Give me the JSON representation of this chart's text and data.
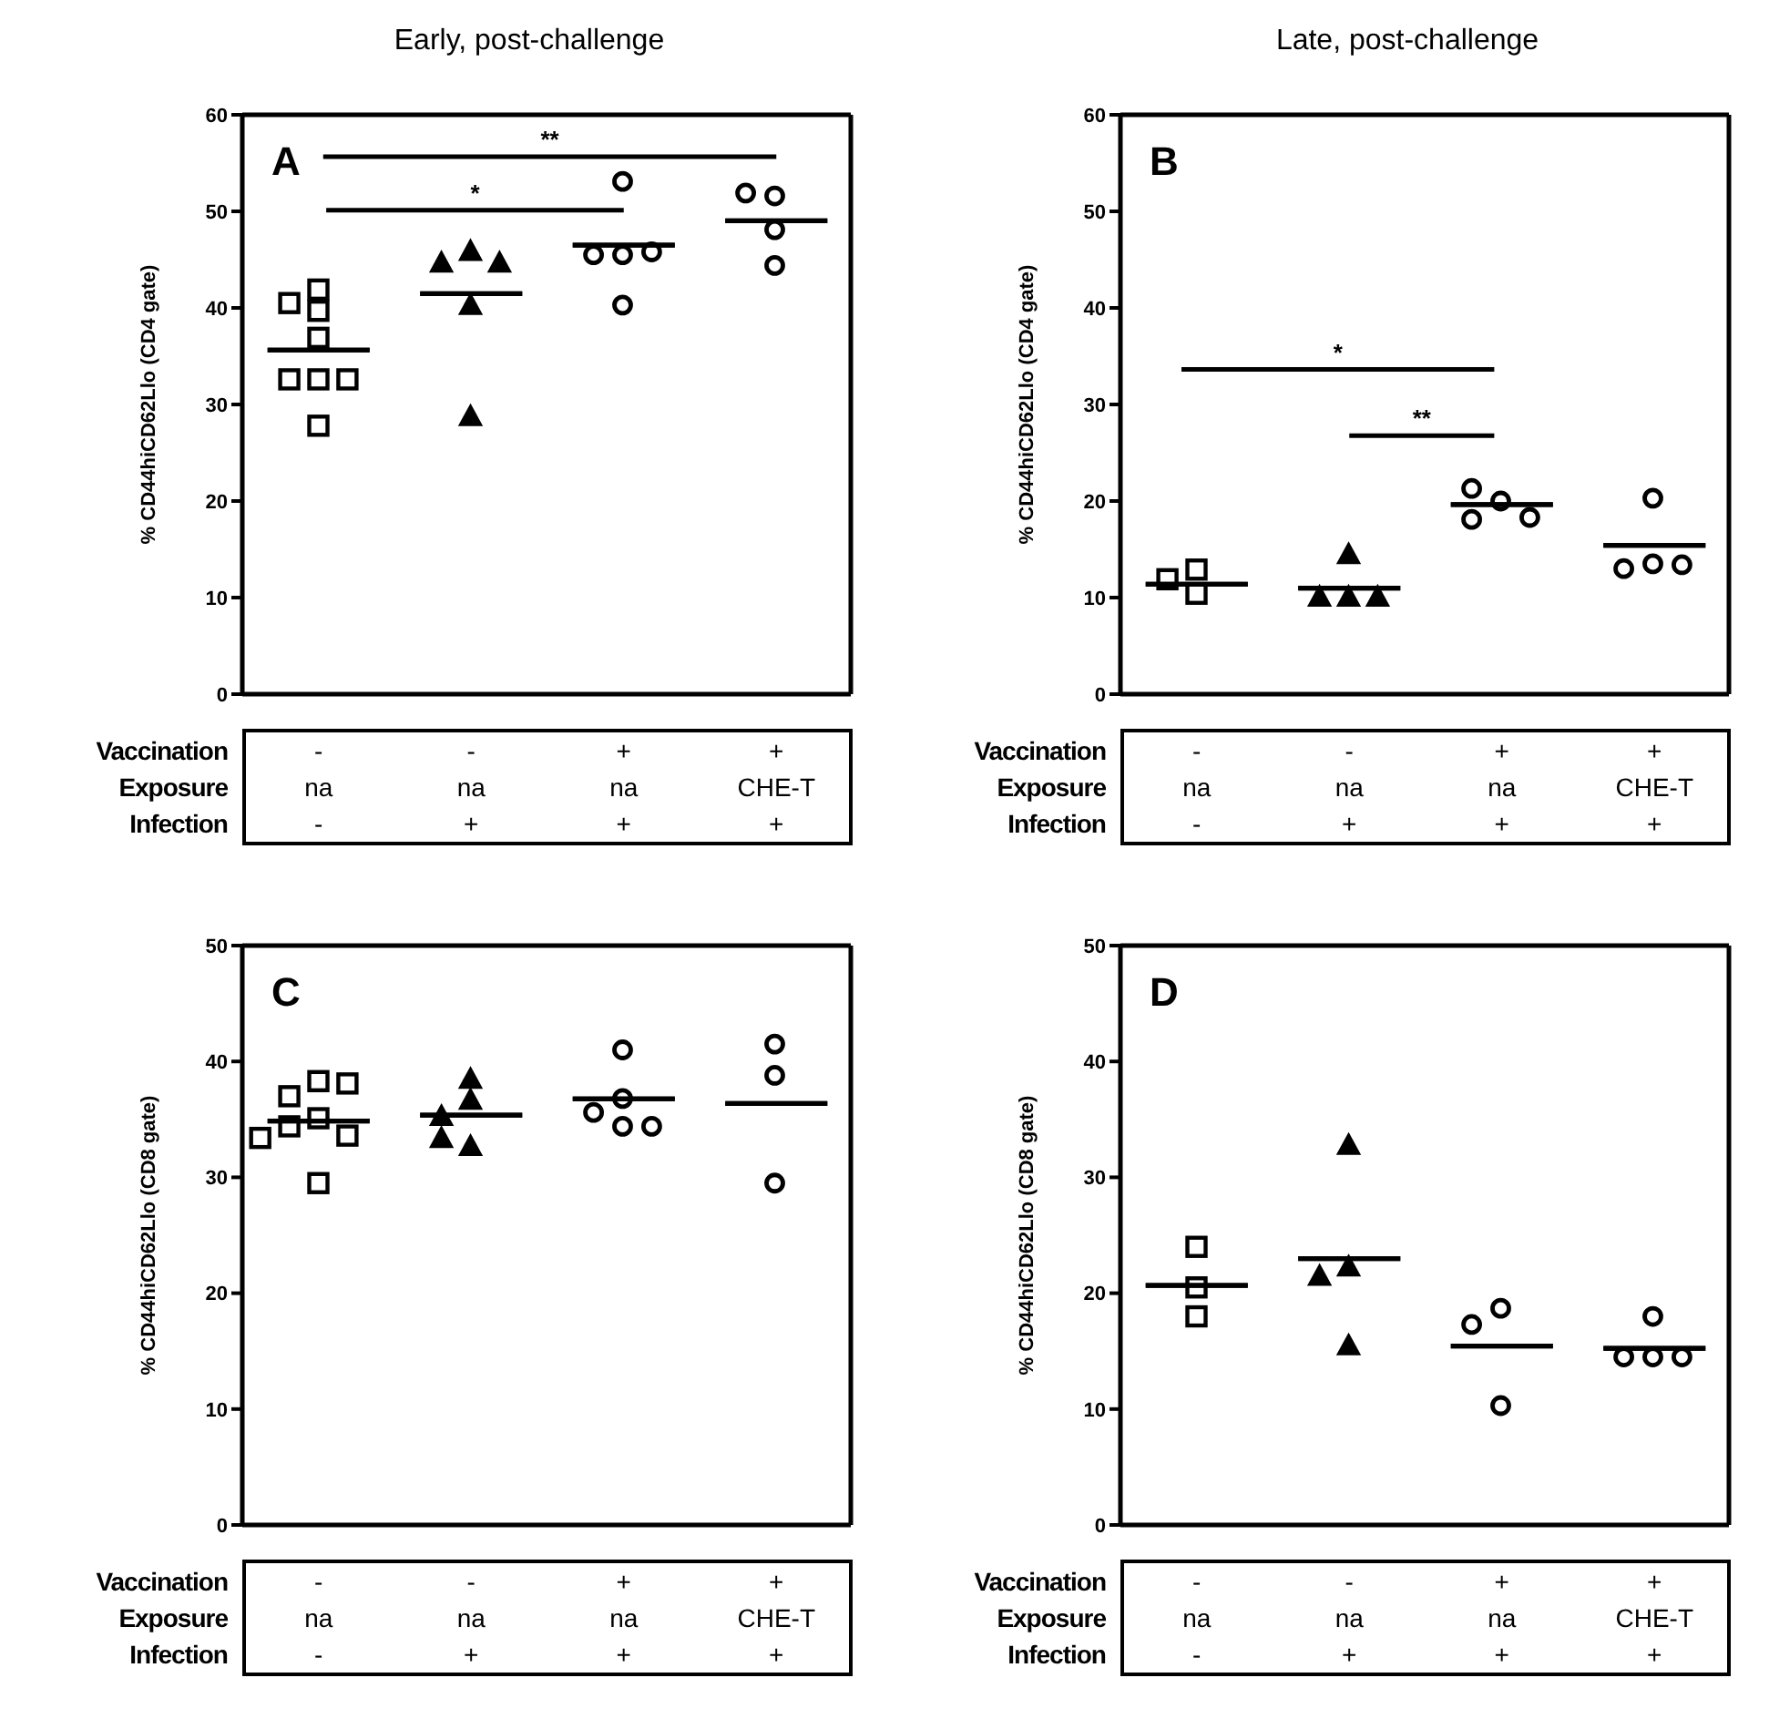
{
  "chart_data": [
    {
      "type": "scatter",
      "title": "Early, post-challenge",
      "ylabel": "% CD44hiCD62Llo (CD4 gate)",
      "xlabel": "Vaccination\nExposure\nInfection",
      "categories": [
        "-\nna\n-",
        "-\nna\n+",
        "+\nna\n+",
        "+\nCHE-T\n+"
      ],
      "ylim": [
        0,
        60
      ],
      "yticks": [
        0,
        10,
        20,
        30,
        40,
        50,
        60
      ],
      "annotations": [
        "A",
        "**",
        "*"
      ],
      "series": [
        {
          "color": "#000000",
          "marker": "square",
          "x": [
            "-\nna\n-",
            "-\nna\n-",
            "-\nna\n-",
            "-\nna\n-",
            "-\nna\n-",
            "-\nna\n-",
            "-\nna\n-",
            "-\nna\n-"
          ],
          "values": [
            41.9,
            40.5,
            39.7,
            36.9,
            32.6,
            32.6,
            32.6,
            27.8
          ]
        },
        {
          "color": "#000000",
          "marker": "triangle",
          "x": [
            "-\nna\n+",
            "-\nna\n+",
            "-\nna\n+",
            "-\nna\n+",
            "-\nna\n+"
          ],
          "values": [
            45.9,
            44.7,
            44.7,
            40.3,
            28.8
          ]
        },
        {
          "color": "#000000",
          "marker": "circle",
          "x": [
            "+\nna\n+",
            "+\nna\n+",
            "+\nna\n+",
            "+\nna\n+",
            "+\nna\n+"
          ],
          "values": [
            53.1,
            45.5,
            45.5,
            45.8,
            40.3
          ]
        },
        {
          "color": "#000000",
          "marker": "circle",
          "x": [
            "+\nCHE-T\n+",
            "+\nCHE-T\n+",
            "+\nCHE-T\n+",
            "+\nCHE-T\n+"
          ],
          "values": [
            51.6,
            51.9,
            48.1,
            44.4
          ]
        },
        {
          "type": "box",
          "color": "#000000",
          "boxes": [
            {
              "low": 35.6,
              "q1": 35.6,
              "median": 35.6,
              "q3": 35.6,
              "high": 35.6
            },
            {
              "low": 41.4,
              "q1": 41.4,
              "median": 41.4,
              "q3": 41.4,
              "high": 41.4
            },
            {
              "low": 46.4,
              "q1": 46.4,
              "median": 46.4,
              "q3": 46.4,
              "high": 46.4
            },
            {
              "low": 48.9,
              "q1": 48.9,
              "median": 48.9,
              "q3": 48.9,
              "high": 48.9
            }
          ]
        }
      ]
    },
    {
      "type": "scatter",
      "title": "Late, post-challenge",
      "ylabel": "% CD44hiCD62Llo (CD4 gate)",
      "xlabel": "Vaccination\nExposure\nInfection",
      "categories": [
        "-\nna\n-",
        "-\nna\n+",
        "+\nna\n+",
        "+\nCHE-T\n+"
      ],
      "ylim": [
        0,
        60
      ],
      "yticks": [
        0,
        10,
        20,
        30,
        40,
        50,
        60
      ],
      "annotations": [
        "B",
        "*",
        "**"
      ],
      "series": [
        {
          "color": "#000000",
          "marker": "square",
          "x": [
            "-\nna\n-",
            "-\nna\n-",
            "-\nna\n-"
          ],
          "values": [
            12.9,
            10.4,
            11.9
          ]
        },
        {
          "color": "#000000",
          "marker": "triangle",
          "x": [
            "-\nna\n+",
            "-\nna\n+",
            "-\nna\n+",
            "-\nna\n+"
          ],
          "values": [
            14.5,
            10.1,
            10.1,
            10.1
          ]
        },
        {
          "color": "#000000",
          "marker": "circle",
          "x": [
            "+\nna\n+",
            "+\nna\n+",
            "+\nna\n+",
            "+\nna\n+"
          ],
          "values": [
            20.0,
            21.3,
            18.1,
            18.3
          ]
        },
        {
          "color": "#000000",
          "marker": "circle",
          "x": [
            "+\nCHE-T\n+",
            "+\nCHE-T\n+",
            "+\nCHE-T\n+",
            "+\nCHE-T\n+"
          ],
          "values": [
            20.3,
            13.5,
            13.0,
            13.4
          ]
        },
        {
          "type": "box",
          "color": "#000000",
          "boxes": [
            {
              "low": 11.5,
              "q1": 11.5,
              "median": 11.5,
              "q3": 11.5,
              "high": 11.5
            },
            {
              "low": 11.1,
              "q1": 11.1,
              "median": 11.1,
              "q3": 11.1,
              "high": 11.1
            },
            {
              "low": 19.7,
              "q1": 19.7,
              "median": 19.7,
              "q3": 19.7,
              "high": 19.7
            },
            {
              "low": 15.5,
              "q1": 15.5,
              "median": 15.5,
              "q3": 15.5,
              "high": 15.5
            }
          ]
        }
      ]
    },
    {
      "type": "scatter",
      "ylabel": "% CD44hiCD62Llo (CD8 gate)",
      "xlabel": "Vaccination\nExposure\nInfection",
      "categories": [
        "-\nna\n-",
        "-\nna\n+",
        "+\nna\n+",
        "+\nCHE-T\n+"
      ],
      "ylim": [
        0,
        50
      ],
      "yticks": [
        0,
        10,
        20,
        30,
        40,
        50
      ],
      "annotations": [
        "C"
      ],
      "series": [
        {
          "color": "#000000",
          "marker": "square",
          "x": [
            "-\nna\n-",
            "-\nna\n-",
            "-\nna\n-",
            "-\nna\n-",
            "-\nna\n-",
            "-\nna\n-",
            "-\nna\n-",
            "-\nna\n-"
          ],
          "values": [
            38.3,
            37.0,
            38.1,
            35.1,
            34.4,
            33.6,
            33.4,
            29.5
          ]
        },
        {
          "color": "#000000",
          "marker": "triangle",
          "x": [
            "-\nna\n+",
            "-\nna\n+",
            "-\nna\n+",
            "-\nna\n+",
            "-\nna\n+"
          ],
          "values": [
            38.5,
            36.7,
            35.3,
            32.7,
            33.4
          ]
        },
        {
          "color": "#000000",
          "marker": "circle",
          "x": [
            "+\nna\n+",
            "+\nna\n+",
            "+\nna\n+",
            "+\nna\n+",
            "+\nna\n+"
          ],
          "values": [
            41.0,
            36.8,
            35.6,
            34.4,
            34.4
          ]
        },
        {
          "color": "#000000",
          "marker": "circle",
          "x": [
            "+\nCHE-T\n+",
            "+\nCHE-T\n+",
            "+\nCHE-T\n+"
          ],
          "values": [
            41.5,
            38.8,
            29.5
          ]
        },
        {
          "type": "box",
          "color": "#000000",
          "boxes": [
            {
              "low": 34.8,
              "q1": 34.8,
              "median": 34.8,
              "q3": 34.8,
              "high": 34.8
            },
            {
              "low": 35.3,
              "q1": 35.3,
              "median": 35.3,
              "q3": 35.3,
              "high": 35.3
            },
            {
              "low": 36.7,
              "q1": 36.7,
              "median": 36.7,
              "q3": 36.7,
              "high": 36.7
            },
            {
              "low": 36.3,
              "q1": 36.3,
              "median": 36.3,
              "q3": 36.3,
              "high": 36.3
            }
          ]
        }
      ]
    },
    {
      "type": "scatter",
      "ylabel": "% CD44hiCD62Llo (CD8 gate)",
      "xlabel": "Vaccination\nExposure\nInfection",
      "categories": [
        "-\nna\n-",
        "-\nna\n+",
        "+\nna\n+",
        "+\nCHE-T\n+"
      ],
      "ylim": [
        0,
        50
      ],
      "yticks": [
        0,
        10,
        20,
        30,
        40,
        50
      ],
      "annotations": [
        "D"
      ],
      "series": [
        {
          "color": "#000000",
          "marker": "square",
          "x": [
            "-\nna\n-",
            "-\nna\n-",
            "-\nna\n-"
          ],
          "values": [
            24.0,
            20.5,
            18.0
          ]
        },
        {
          "color": "#000000",
          "marker": "triangle",
          "x": [
            "-\nna\n+",
            "-\nna\n+",
            "-\nna\n+",
            "-\nna\n+"
          ],
          "values": [
            32.8,
            22.3,
            21.5,
            15.5
          ]
        },
        {
          "color": "#000000",
          "marker": "circle",
          "x": [
            "+\nna\n+",
            "+\nna\n+",
            "+\nna\n+"
          ],
          "values": [
            18.7,
            17.3,
            10.3
          ]
        },
        {
          "color": "#000000",
          "marker": "circle",
          "x": [
            "+\nCHE-T\n+",
            "+\nCHE-T\n+",
            "+\nCHE-T\n+",
            "+\nCHE-T\n+"
          ],
          "values": [
            18.0,
            14.5,
            14.5,
            14.5
          ]
        },
        {
          "type": "box",
          "color": "#000000",
          "boxes": [
            {
              "low": 20.7,
              "q1": 20.7,
              "median": 20.7,
              "q3": 20.7,
              "high": 20.7
            },
            {
              "low": 23.0,
              "q1": 23.0,
              "median": 23.0,
              "q3": 23.0,
              "high": 23.0
            },
            {
              "low": 15.5,
              "q1": 15.5,
              "median": 15.5,
              "q3": 15.5,
              "high": 15.5
            },
            {
              "low": 15.3,
              "q1": 15.3,
              "median": 15.3,
              "q3": 15.3,
              "high": 15.3
            }
          ]
        }
      ]
    }
  ]
}
